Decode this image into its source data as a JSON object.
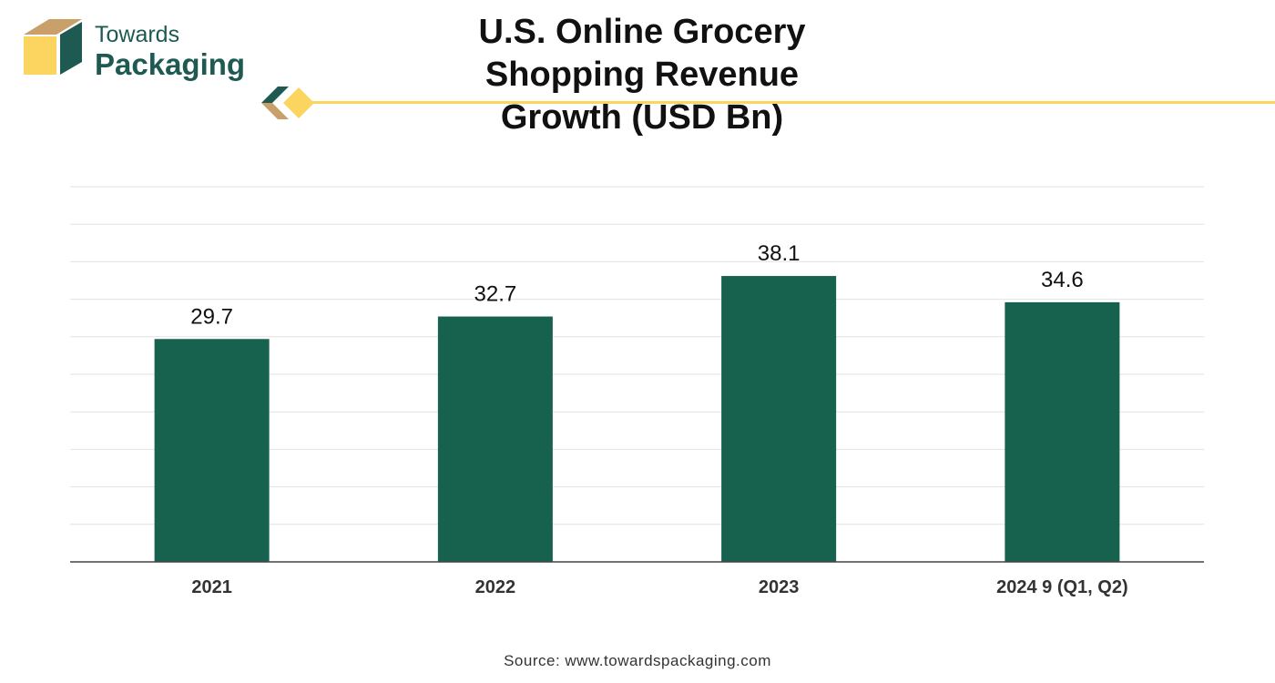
{
  "brand": {
    "line1": "Towards",
    "line2": "Packaging",
    "colors": {
      "green": "#1e5a52",
      "tan": "#c9a06a",
      "yellow": "#fcd561"
    }
  },
  "header": {
    "title_line1": "U.S. Online Grocery Shopping Revenue",
    "title_line2": "Growth (USD Bn)"
  },
  "chart_data": {
    "type": "bar",
    "categories": [
      "2021",
      "2022",
      "2023",
      "2024 9 (Q1, Q2)"
    ],
    "values": [
      29.7,
      32.7,
      38.1,
      34.6
    ],
    "bar_color": "#17614f",
    "ylim": [
      0,
      50
    ],
    "grid": true,
    "legend": "none"
  },
  "footer": {
    "source": "Source: www.towardspackaging.com"
  }
}
